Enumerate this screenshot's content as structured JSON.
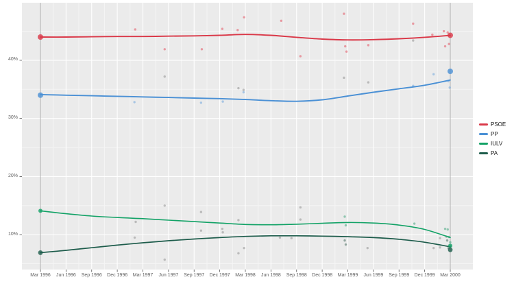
{
  "chart_data": {
    "type": "line",
    "title": "",
    "x_tick_labels": [
      "Mar 1996",
      "Jun 1996",
      "Sep 1996",
      "Dec 1996",
      "Mar 1997",
      "Jun 1997",
      "Sep 1997",
      "Dec 1997",
      "Mar 1998",
      "Jun 1998",
      "Sep 1998",
      "Dec 1998",
      "Mar 1999",
      "Jun 1999",
      "Sep 1999",
      "Dec 1999",
      "Mar 2000"
    ],
    "y_ticks": [
      {
        "value": 10,
        "label": "10%"
      },
      {
        "value": 20,
        "label": "20%"
      },
      {
        "value": 30,
        "label": "30%"
      },
      {
        "value": 40,
        "label": "40%"
      }
    ],
    "ylim": [
      4,
      49.9
    ],
    "grid": "major-and-minor",
    "legend_position": "right",
    "election_line_positions": [
      0,
      16
    ],
    "series": [
      {
        "name": "PSOE",
        "color": "#da3848",
        "point_color": "#e4606e",
        "trend": [
          44.0,
          44.0,
          44.05,
          44.1,
          44.1,
          44.15,
          44.2,
          44.3,
          44.45,
          44.3,
          43.95,
          43.65,
          43.5,
          43.55,
          43.7,
          43.95,
          44.3
        ],
        "polls": [
          [
            3.7,
            45.3
          ],
          [
            4.85,
            41.9
          ],
          [
            6.3,
            41.9
          ],
          [
            7.1,
            45.4
          ],
          [
            7.7,
            45.2
          ],
          [
            7.95,
            47.4
          ],
          [
            9.4,
            46.8
          ],
          [
            10.15,
            40.7
          ],
          [
            11.85,
            48.0
          ],
          [
            11.9,
            42.4
          ],
          [
            11.95,
            41.5
          ],
          [
            12.8,
            42.6
          ],
          [
            14.55,
            46.3
          ],
          [
            15.3,
            44.4
          ],
          [
            15.75,
            45.0
          ],
          [
            15.9,
            44.8
          ],
          [
            15.8,
            42.4
          ],
          [
            15.95,
            42.8
          ]
        ],
        "election_results": [
          [
            0,
            44.0
          ],
          [
            16,
            44.3
          ]
        ]
      },
      {
        "name": "PP",
        "color": "#4a90d5",
        "point_color": "#79abdd",
        "trend": [
          34.1,
          34.0,
          33.9,
          33.8,
          33.7,
          33.6,
          33.5,
          33.4,
          33.25,
          33.05,
          32.95,
          33.2,
          33.85,
          34.5,
          35.1,
          35.7,
          36.6
        ],
        "polls": [
          [
            3.67,
            32.8
          ],
          [
            6.27,
            32.7
          ],
          [
            7.12,
            32.9
          ],
          [
            7.93,
            34.5
          ],
          [
            14.55,
            35.6
          ],
          [
            15.35,
            37.6
          ],
          [
            15.93,
            36.4
          ],
          [
            15.98,
            35.3
          ]
        ],
        "election_results": [
          [
            0,
            34.0
          ],
          [
            16,
            38.1
          ]
        ]
      },
      {
        "name": "IULV",
        "color": "#12a266",
        "point_color": "#53ae88",
        "trend": [
          14.1,
          13.6,
          13.2,
          12.95,
          12.75,
          12.5,
          12.25,
          12.0,
          11.75,
          11.7,
          11.8,
          11.95,
          12.1,
          12.0,
          11.65,
          10.9,
          9.5
        ],
        "polls": [
          [
            11.88,
            13.1
          ],
          [
            11.92,
            11.6
          ],
          [
            14.6,
            11.9
          ],
          [
            15.8,
            11.0
          ],
          [
            15.9,
            10.9
          ],
          [
            15.95,
            9.6
          ],
          [
            16.0,
            8.7
          ]
        ],
        "election_results": [
          [
            0,
            14.1
          ],
          [
            16,
            8.1
          ]
        ]
      },
      {
        "name": "PA",
        "color": "#1d5c4b",
        "point_color": "#587a6e",
        "trend": [
          6.9,
          7.3,
          7.75,
          8.2,
          8.6,
          8.95,
          9.25,
          9.5,
          9.7,
          9.8,
          9.8,
          9.75,
          9.65,
          9.5,
          9.2,
          8.7,
          7.9
        ],
        "polls": [
          [
            11.88,
            9.0
          ],
          [
            11.92,
            8.3
          ],
          [
            15.88,
            9.0
          ],
          [
            15.93,
            7.7
          ],
          [
            16.0,
            8.0
          ]
        ],
        "election_results": [
          [
            0,
            6.9
          ],
          [
            16,
            7.4
          ]
        ]
      }
    ],
    "other_polls_color": "#919191",
    "other_polls": [
      [
        4.85,
        37.2
      ],
      [
        7.73,
        35.2
      ],
      [
        7.93,
        34.9
      ],
      [
        11.85,
        37.0
      ],
      [
        12.8,
        36.2
      ],
      [
        14.55,
        43.4
      ],
      [
        4.85,
        15.0
      ],
      [
        6.27,
        13.9
      ],
      [
        10.15,
        14.7
      ],
      [
        3.72,
        12.2
      ],
      [
        7.73,
        12.5
      ],
      [
        10.15,
        12.6
      ],
      [
        6.27,
        10.7
      ],
      [
        7.1,
        11.0
      ],
      [
        7.12,
        10.4
      ],
      [
        3.68,
        9.5
      ],
      [
        9.35,
        9.5
      ],
      [
        9.8,
        9.4
      ],
      [
        12.77,
        7.7
      ],
      [
        15.35,
        7.7
      ],
      [
        15.6,
        7.8
      ],
      [
        7.95,
        7.7
      ],
      [
        7.73,
        6.8
      ],
      [
        4.85,
        5.7
      ],
      [
        15.6,
        9.4
      ],
      [
        15.85,
        9.65
      ]
    ],
    "legend": [
      "PSOE",
      "PP",
      "IULV",
      "PA"
    ]
  }
}
